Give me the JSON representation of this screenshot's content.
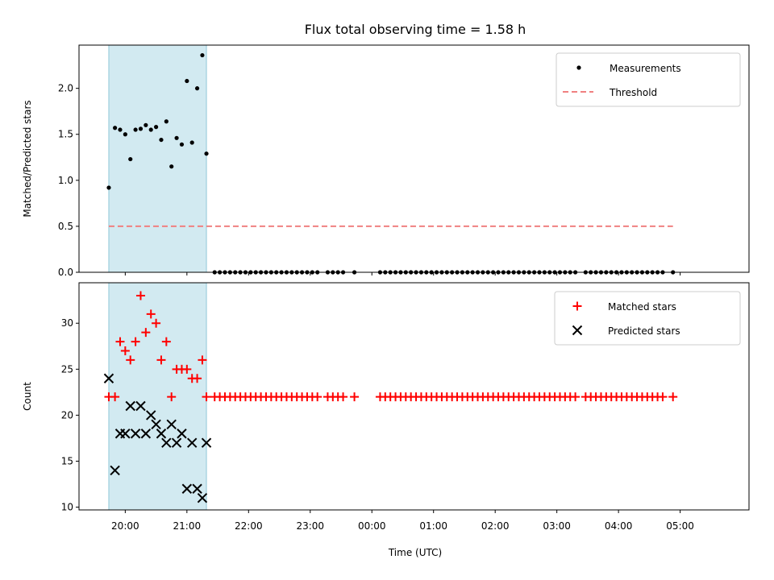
{
  "chart_data": {
    "title": "Flux total observing time = 1.58 h",
    "xlabel": "Time (UTC)",
    "x_ticks": [
      "20:00",
      "21:00",
      "22:00",
      "23:00",
      "00:00",
      "01:00",
      "02:00",
      "03:00",
      "04:00",
      "05:00"
    ],
    "x_domain_minutes": [
      1155,
      1807
    ],
    "shaded_region": {
      "start": "19:44",
      "end": "21:19",
      "color": "#add8e6"
    },
    "panels": [
      {
        "type": "scatter",
        "ylabel": "Matched/Predicted stars",
        "ylim": [
          0,
          2.47
        ],
        "y_ticks": [
          0.0,
          0.5,
          1.0,
          1.5,
          2.0
        ],
        "y_tick_labels": [
          "0.0",
          "0.5",
          "1.0",
          "1.5",
          "2.0"
        ],
        "legend_position": "top-right",
        "series": [
          {
            "name": "Measurements",
            "marker": "dot",
            "color": "#000000",
            "points": [
              [
                "19:44",
                0.92
              ],
              [
                "19:50",
                1.57
              ],
              [
                "19:55",
                1.55
              ],
              [
                "20:00",
                1.5
              ],
              [
                "20:05",
                1.23
              ],
              [
                "20:10",
                1.55
              ],
              [
                "20:15",
                1.56
              ],
              [
                "20:20",
                1.6
              ],
              [
                "20:25",
                1.55
              ],
              [
                "20:30",
                1.58
              ],
              [
                "20:35",
                1.44
              ],
              [
                "20:40",
                1.64
              ],
              [
                "20:45",
                1.15
              ],
              [
                "20:50",
                1.46
              ],
              [
                "20:55",
                1.39
              ],
              [
                "21:00",
                2.08
              ],
              [
                "21:05",
                1.41
              ],
              [
                "21:10",
                2.0
              ],
              [
                "21:15",
                2.36
              ],
              [
                "21:19",
                1.29
              ],
              [
                "21:27",
                0
              ],
              [
                "21:32",
                0
              ],
              [
                "21:37",
                0
              ],
              [
                "21:42",
                0
              ],
              [
                "21:47",
                0
              ],
              [
                "21:52",
                0
              ],
              [
                "21:57",
                0
              ],
              [
                "22:02",
                0
              ],
              [
                "22:07",
                0
              ],
              [
                "22:12",
                0
              ],
              [
                "22:17",
                0
              ],
              [
                "22:22",
                0
              ],
              [
                "22:27",
                0
              ],
              [
                "22:32",
                0
              ],
              [
                "22:37",
                0
              ],
              [
                "22:42",
                0
              ],
              [
                "22:47",
                0
              ],
              [
                "22:52",
                0
              ],
              [
                "22:57",
                0
              ],
              [
                "23:02",
                0
              ],
              [
                "23:07",
                0
              ],
              [
                "23:17",
                0
              ],
              [
                "23:22",
                0
              ],
              [
                "23:27",
                0
              ],
              [
                "23:32",
                0
              ],
              [
                "23:43",
                0
              ],
              [
                "00:08",
                0
              ],
              [
                "00:13",
                0
              ],
              [
                "00:18",
                0
              ],
              [
                "00:23",
                0
              ],
              [
                "00:28",
                0
              ],
              [
                "00:33",
                0
              ],
              [
                "00:38",
                0
              ],
              [
                "00:43",
                0
              ],
              [
                "00:48",
                0
              ],
              [
                "00:53",
                0
              ],
              [
                "00:58",
                0
              ],
              [
                "01:03",
                0
              ],
              [
                "01:08",
                0
              ],
              [
                "01:13",
                0
              ],
              [
                "01:18",
                0
              ],
              [
                "01:23",
                0
              ],
              [
                "01:28",
                0
              ],
              [
                "01:33",
                0
              ],
              [
                "01:38",
                0
              ],
              [
                "01:43",
                0
              ],
              [
                "01:48",
                0
              ],
              [
                "01:53",
                0
              ],
              [
                "01:58",
                0
              ],
              [
                "02:03",
                0
              ],
              [
                "02:08",
                0
              ],
              [
                "02:13",
                0
              ],
              [
                "02:18",
                0
              ],
              [
                "02:23",
                0
              ],
              [
                "02:28",
                0
              ],
              [
                "02:33",
                0
              ],
              [
                "02:38",
                0
              ],
              [
                "02:43",
                0
              ],
              [
                "02:48",
                0
              ],
              [
                "02:53",
                0
              ],
              [
                "02:58",
                0
              ],
              [
                "03:03",
                0
              ],
              [
                "03:08",
                0
              ],
              [
                "03:13",
                0
              ],
              [
                "03:18",
                0
              ],
              [
                "03:28",
                0
              ],
              [
                "03:33",
                0
              ],
              [
                "03:38",
                0
              ],
              [
                "03:43",
                0
              ],
              [
                "03:48",
                0
              ],
              [
                "03:53",
                0
              ],
              [
                "03:58",
                0
              ],
              [
                "04:03",
                0
              ],
              [
                "04:08",
                0
              ],
              [
                "04:13",
                0
              ],
              [
                "04:18",
                0
              ],
              [
                "04:23",
                0
              ],
              [
                "04:28",
                0
              ],
              [
                "04:33",
                0
              ],
              [
                "04:38",
                0
              ],
              [
                "04:43",
                0
              ],
              [
                "04:53",
                0
              ]
            ]
          },
          {
            "name": "Threshold",
            "marker": "dashed-line",
            "color": "#f08080",
            "points": [
              [
                "19:44",
                0.5
              ],
              [
                "04:53",
                0.5
              ]
            ]
          }
        ]
      },
      {
        "type": "scatter",
        "ylabel": "Count",
        "ylim": [
          9.7,
          34.4
        ],
        "y_ticks": [
          10,
          15,
          20,
          25,
          30
        ],
        "y_tick_labels": [
          "10",
          "15",
          "20",
          "25",
          "30"
        ],
        "legend_position": "top-right",
        "series": [
          {
            "name": "Matched stars",
            "marker": "plus",
            "color": "#ff0000",
            "points": [
              [
                "19:44",
                22
              ],
              [
                "19:50",
                22
              ],
              [
                "19:55",
                28
              ],
              [
                "20:00",
                27
              ],
              [
                "20:05",
                26
              ],
              [
                "20:10",
                28
              ],
              [
                "20:15",
                33
              ],
              [
                "20:20",
                29
              ],
              [
                "20:25",
                31
              ],
              [
                "20:30",
                30
              ],
              [
                "20:35",
                26
              ],
              [
                "20:40",
                28
              ],
              [
                "20:45",
                22
              ],
              [
                "20:50",
                25
              ],
              [
                "20:55",
                25
              ],
              [
                "21:00",
                25
              ],
              [
                "21:05",
                24
              ],
              [
                "21:10",
                24
              ],
              [
                "21:15",
                26
              ],
              [
                "21:19",
                22
              ],
              [
                "21:27",
                22
              ],
              [
                "21:32",
                22
              ],
              [
                "21:37",
                22
              ],
              [
                "21:42",
                22
              ],
              [
                "21:47",
                22
              ],
              [
                "21:52",
                22
              ],
              [
                "21:57",
                22
              ],
              [
                "22:02",
                22
              ],
              [
                "22:07",
                22
              ],
              [
                "22:12",
                22
              ],
              [
                "22:17",
                22
              ],
              [
                "22:22",
                22
              ],
              [
                "22:27",
                22
              ],
              [
                "22:32",
                22
              ],
              [
                "22:37",
                22
              ],
              [
                "22:42",
                22
              ],
              [
                "22:47",
                22
              ],
              [
                "22:52",
                22
              ],
              [
                "22:57",
                22
              ],
              [
                "23:02",
                22
              ],
              [
                "23:07",
                22
              ],
              [
                "23:17",
                22
              ],
              [
                "23:22",
                22
              ],
              [
                "23:27",
                22
              ],
              [
                "23:32",
                22
              ],
              [
                "23:43",
                22
              ],
              [
                "00:08",
                22
              ],
              [
                "00:13",
                22
              ],
              [
                "00:18",
                22
              ],
              [
                "00:23",
                22
              ],
              [
                "00:28",
                22
              ],
              [
                "00:33",
                22
              ],
              [
                "00:38",
                22
              ],
              [
                "00:43",
                22
              ],
              [
                "00:48",
                22
              ],
              [
                "00:53",
                22
              ],
              [
                "00:58",
                22
              ],
              [
                "01:03",
                22
              ],
              [
                "01:08",
                22
              ],
              [
                "01:13",
                22
              ],
              [
                "01:18",
                22
              ],
              [
                "01:23",
                22
              ],
              [
                "01:28",
                22
              ],
              [
                "01:33",
                22
              ],
              [
                "01:38",
                22
              ],
              [
                "01:43",
                22
              ],
              [
                "01:48",
                22
              ],
              [
                "01:53",
                22
              ],
              [
                "01:58",
                22
              ],
              [
                "02:03",
                22
              ],
              [
                "02:08",
                22
              ],
              [
                "02:13",
                22
              ],
              [
                "02:18",
                22
              ],
              [
                "02:23",
                22
              ],
              [
                "02:28",
                22
              ],
              [
                "02:33",
                22
              ],
              [
                "02:38",
                22
              ],
              [
                "02:43",
                22
              ],
              [
                "02:48",
                22
              ],
              [
                "02:53",
                22
              ],
              [
                "02:58",
                22
              ],
              [
                "03:03",
                22
              ],
              [
                "03:08",
                22
              ],
              [
                "03:13",
                22
              ],
              [
                "03:18",
                22
              ],
              [
                "03:28",
                22
              ],
              [
                "03:33",
                22
              ],
              [
                "03:38",
                22
              ],
              [
                "03:43",
                22
              ],
              [
                "03:48",
                22
              ],
              [
                "03:53",
                22
              ],
              [
                "03:58",
                22
              ],
              [
                "04:03",
                22
              ],
              [
                "04:08",
                22
              ],
              [
                "04:13",
                22
              ],
              [
                "04:18",
                22
              ],
              [
                "04:23",
                22
              ],
              [
                "04:28",
                22
              ],
              [
                "04:33",
                22
              ],
              [
                "04:38",
                22
              ],
              [
                "04:43",
                22
              ],
              [
                "04:53",
                22
              ]
            ]
          },
          {
            "name": "Predicted stars",
            "marker": "x",
            "color": "#000000",
            "points": [
              [
                "19:44",
                24
              ],
              [
                "19:50",
                14
              ],
              [
                "19:55",
                18
              ],
              [
                "20:00",
                18
              ],
              [
                "20:05",
                21
              ],
              [
                "20:10",
                18
              ],
              [
                "20:15",
                21
              ],
              [
                "20:20",
                18
              ],
              [
                "20:25",
                20
              ],
              [
                "20:30",
                19
              ],
              [
                "20:35",
                18
              ],
              [
                "20:40",
                17
              ],
              [
                "20:45",
                19
              ],
              [
                "20:50",
                17
              ],
              [
                "20:55",
                18
              ],
              [
                "21:00",
                12
              ],
              [
                "21:05",
                17
              ],
              [
                "21:10",
                12
              ],
              [
                "21:15",
                11
              ],
              [
                "21:19",
                17
              ]
            ]
          }
        ]
      }
    ]
  }
}
